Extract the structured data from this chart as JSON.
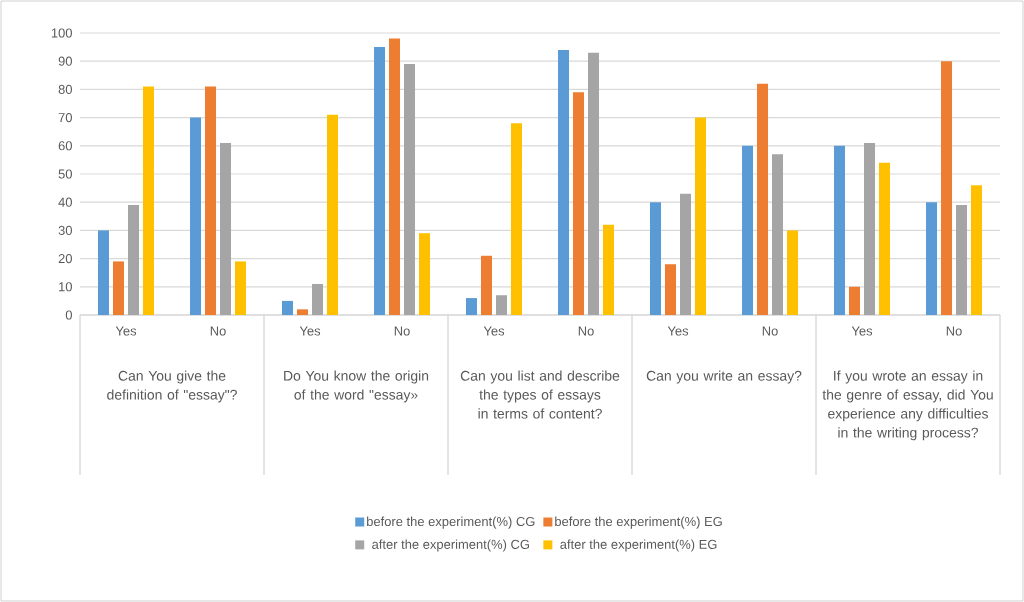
{
  "chart_data": {
    "type": "bar",
    "categories": [
      "Yes",
      "No",
      "Yes",
      "No",
      "Yes",
      "No",
      "Yes",
      "No",
      "Yes",
      "No"
    ],
    "annotations": [
      "Can You give the definition of \"essay\"?",
      "Do You know the origin of the word \"essay»",
      "Can you list and describe the types of essays in terms of content?",
      "Can you write an essay?",
      "If you wrote an essay in the genre of essay, did You experience any difficulties in the writing process?"
    ],
    "series": [
      {
        "name": "before the experiment(%) CG",
        "color": "#5b9bd5",
        "values": [
          30,
          70,
          5,
          95,
          6,
          94,
          40,
          60,
          60,
          40
        ]
      },
      {
        "name": "before the experiment(%) EG",
        "color": "#ed7d31",
        "values": [
          19,
          81,
          2,
          98,
          21,
          79,
          18,
          82,
          10,
          90
        ]
      },
      {
        "name": "after the experiment(%)  CG",
        "color": "#a5a5a5",
        "values": [
          39,
          61,
          11,
          89,
          7,
          93,
          43,
          57,
          61,
          39
        ]
      },
      {
        "name": "after the experiment(%)  EG",
        "color": "#ffc000",
        "values": [
          81,
          19,
          71,
          29,
          68,
          32,
          70,
          30,
          54,
          46
        ]
      }
    ],
    "ylim": [
      0,
      100
    ],
    "yticks": [
      0,
      10,
      20,
      30,
      40,
      50,
      60,
      70,
      80,
      90,
      100
    ],
    "grid": "y",
    "legend": "bottom"
  }
}
